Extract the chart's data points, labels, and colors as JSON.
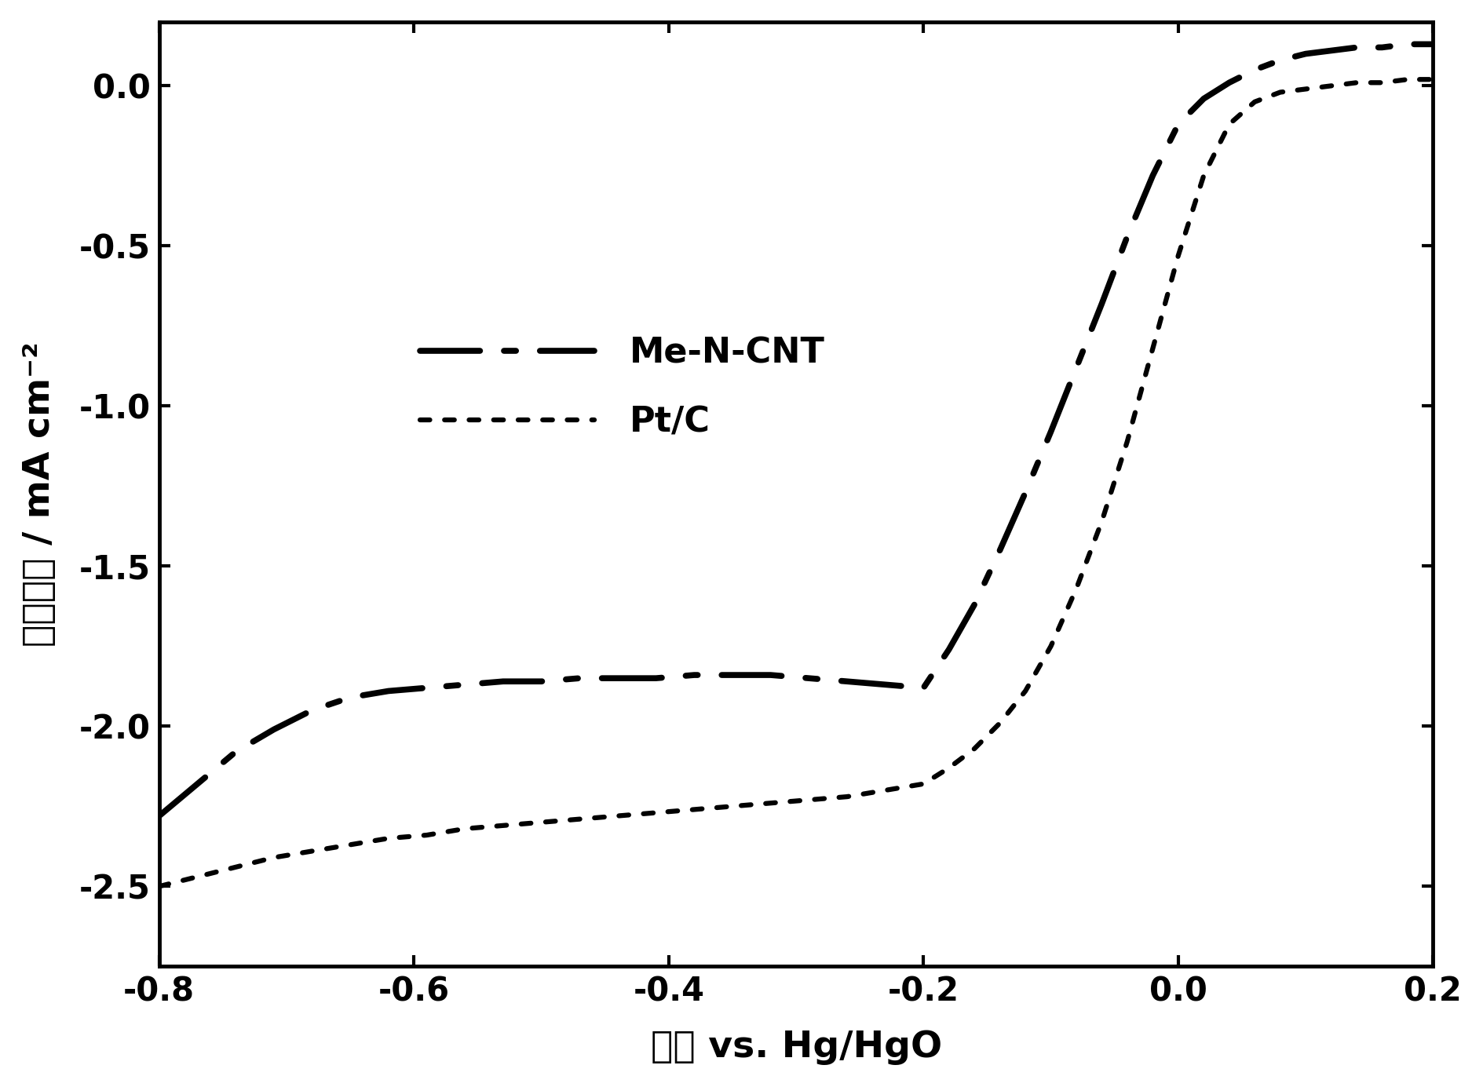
{
  "title": "",
  "xlabel": "电压 vs. Hg/HgO",
  "ylabel": "电流密度 / mA cm⁻²",
  "xlim": [
    -0.8,
    0.2
  ],
  "ylim": [
    -2.75,
    0.2
  ],
  "xticks": [
    -0.8,
    -0.6,
    -0.4,
    -0.2,
    0.0,
    0.2
  ],
  "yticks": [
    -2.5,
    -2.0,
    -1.5,
    -1.0,
    -0.5,
    0.0
  ],
  "background_color": "#ffffff",
  "line_color": "#000000",
  "legend_labels": [
    "Me-N-CNT",
    "Pt/C"
  ],
  "me_n_cnt_x": [
    -0.8,
    -0.77,
    -0.74,
    -0.71,
    -0.68,
    -0.65,
    -0.62,
    -0.59,
    -0.56,
    -0.53,
    -0.5,
    -0.47,
    -0.44,
    -0.41,
    -0.38,
    -0.35,
    -0.32,
    -0.29,
    -0.26,
    -0.23,
    -0.2,
    -0.18,
    -0.16,
    -0.14,
    -0.12,
    -0.1,
    -0.08,
    -0.06,
    -0.04,
    -0.02,
    0.0,
    0.02,
    0.04,
    0.06,
    0.08,
    0.1,
    0.12,
    0.14,
    0.16,
    0.18,
    0.2
  ],
  "me_n_cnt_y": [
    -2.28,
    -2.18,
    -2.08,
    -2.01,
    -1.95,
    -1.91,
    -1.89,
    -1.88,
    -1.87,
    -1.86,
    -1.86,
    -1.85,
    -1.85,
    -1.85,
    -1.84,
    -1.84,
    -1.84,
    -1.85,
    -1.86,
    -1.87,
    -1.88,
    -1.76,
    -1.62,
    -1.45,
    -1.27,
    -1.08,
    -0.88,
    -0.68,
    -0.47,
    -0.28,
    -0.12,
    -0.04,
    0.01,
    0.05,
    0.08,
    0.1,
    0.11,
    0.12,
    0.12,
    0.13,
    0.13
  ],
  "ptc_x": [
    -0.8,
    -0.77,
    -0.74,
    -0.71,
    -0.68,
    -0.65,
    -0.62,
    -0.59,
    -0.56,
    -0.53,
    -0.5,
    -0.47,
    -0.44,
    -0.41,
    -0.38,
    -0.35,
    -0.32,
    -0.29,
    -0.26,
    -0.23,
    -0.2,
    -0.18,
    -0.16,
    -0.14,
    -0.12,
    -0.1,
    -0.08,
    -0.06,
    -0.04,
    -0.02,
    0.0,
    0.02,
    0.04,
    0.06,
    0.08,
    0.1,
    0.12,
    0.14,
    0.16,
    0.18,
    0.2
  ],
  "ptc_y": [
    -2.5,
    -2.47,
    -2.44,
    -2.41,
    -2.39,
    -2.37,
    -2.35,
    -2.34,
    -2.32,
    -2.31,
    -2.3,
    -2.29,
    -2.28,
    -2.27,
    -2.26,
    -2.25,
    -2.24,
    -2.23,
    -2.22,
    -2.2,
    -2.18,
    -2.13,
    -2.07,
    -1.99,
    -1.89,
    -1.75,
    -1.57,
    -1.36,
    -1.11,
    -0.82,
    -0.53,
    -0.28,
    -0.12,
    -0.05,
    -0.02,
    -0.01,
    0.0,
    0.01,
    0.01,
    0.02,
    0.02
  ],
  "fontsize_label": 34,
  "fontsize_tick": 30,
  "fontsize_legend": 32,
  "linewidth_mencnt": 5.5,
  "linewidth_ptc": 4.5
}
